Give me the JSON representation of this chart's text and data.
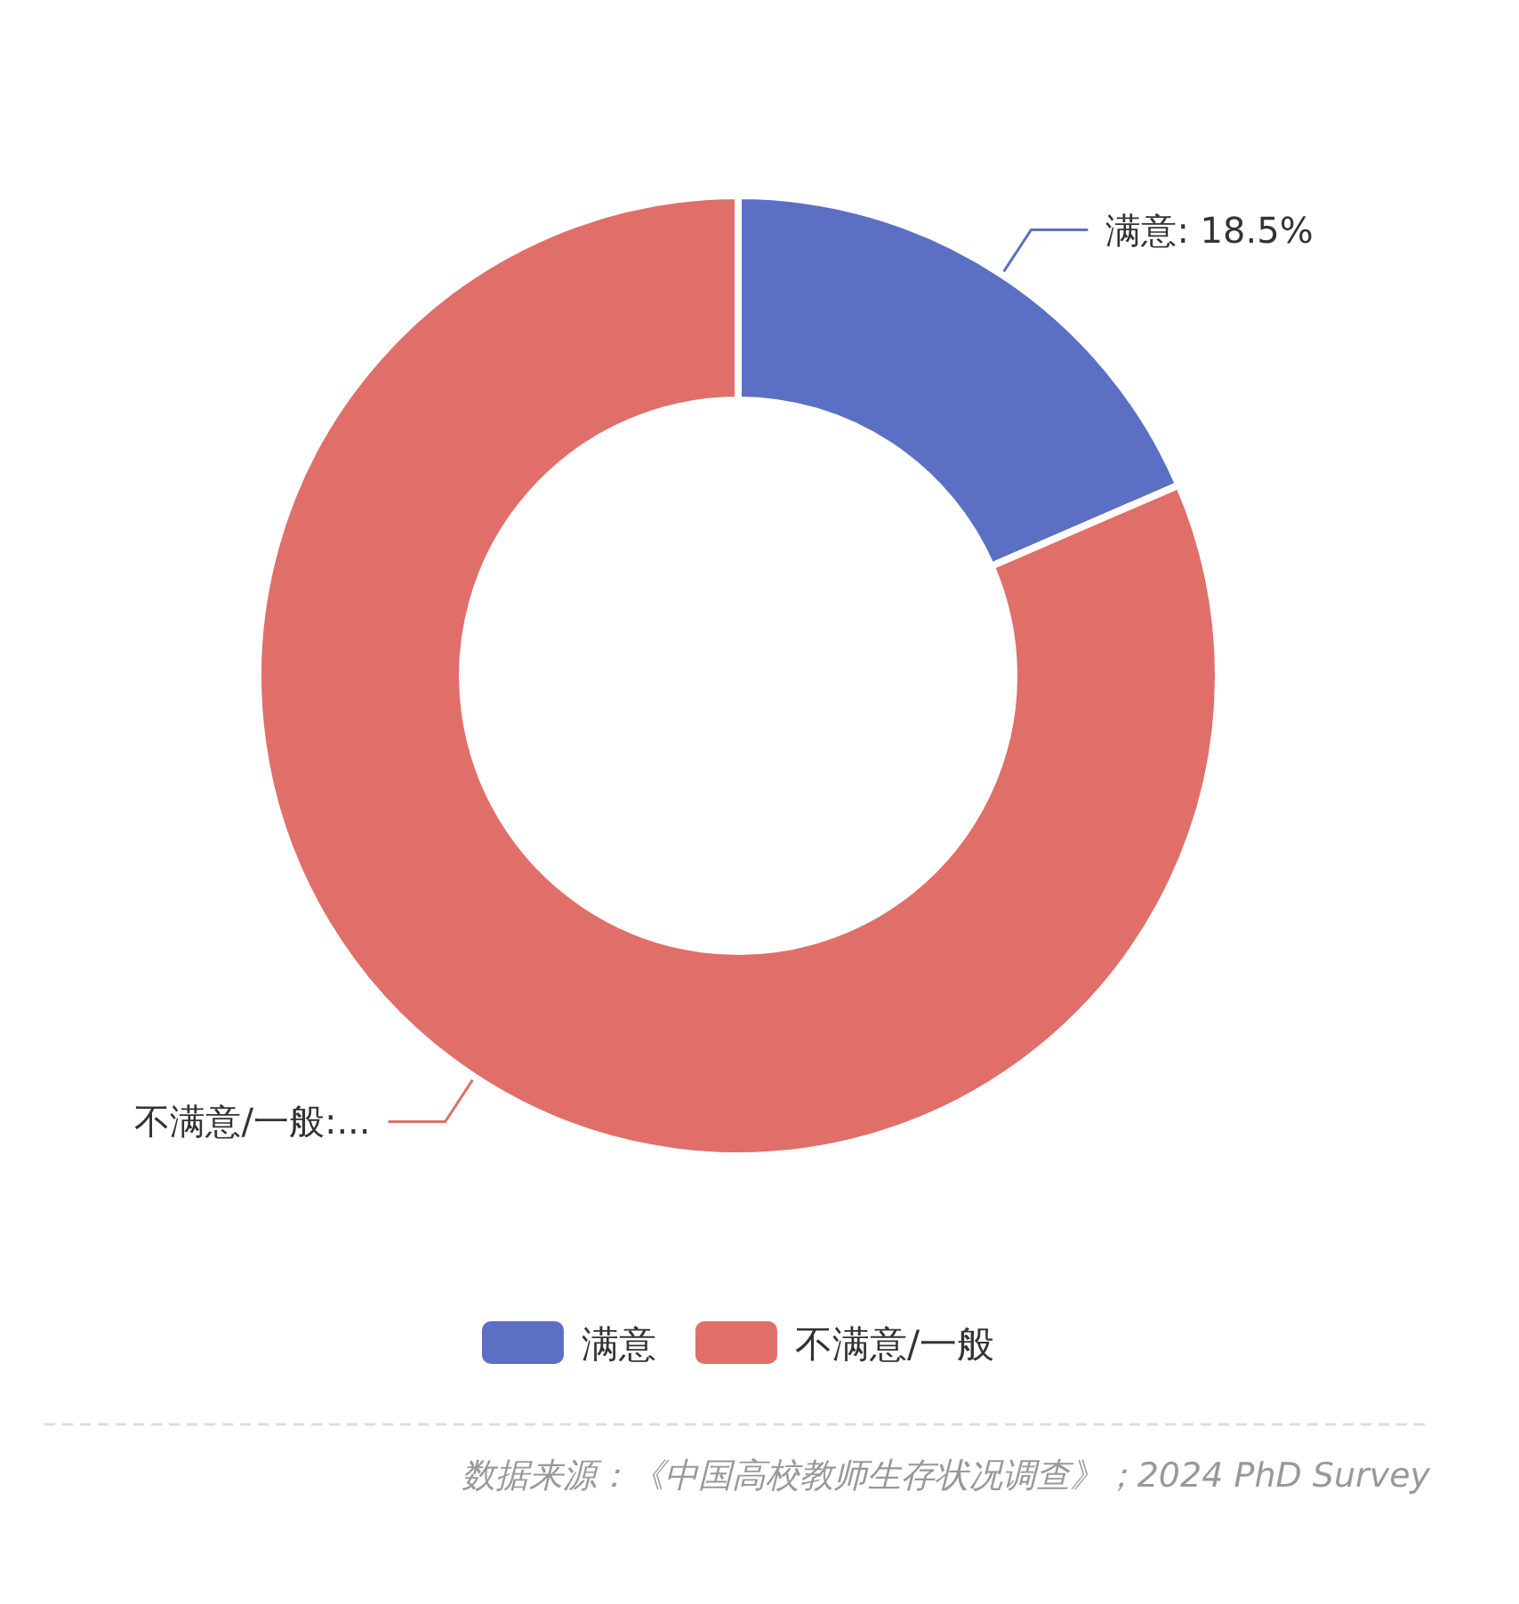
{
  "chart_data": {
    "type": "donut",
    "categories": [
      "满意",
      "不满意/一般"
    ],
    "values": [
      18.5,
      81.5
    ],
    "colors": [
      "#5b70c4",
      "#e06f69"
    ],
    "value_labels": [
      "满意: 18.5%",
      "不满意/一般:..."
    ],
    "legend": "bottom",
    "annotations": [
      "数据来源：《中国高校教师生存状况调查》；2024 PhD Survey"
    ]
  }
}
